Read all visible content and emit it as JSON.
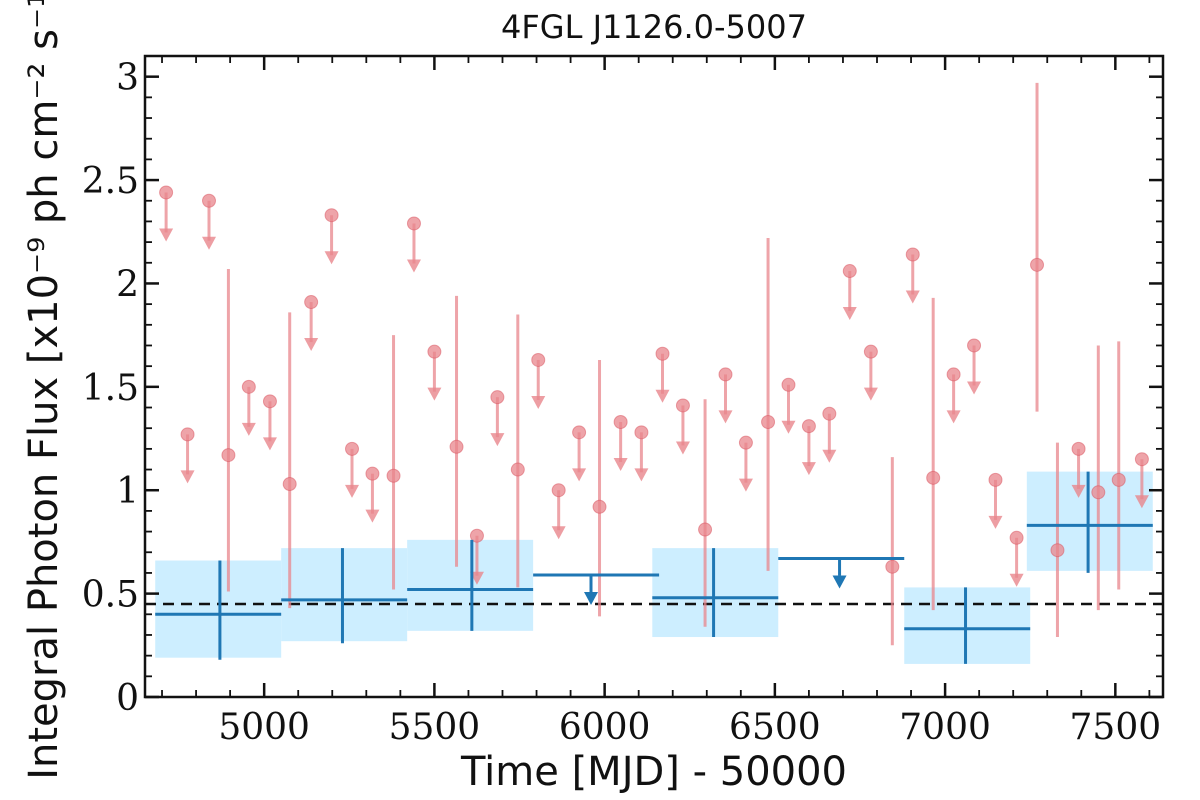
{
  "chart_data": {
    "type": "scatter",
    "title": "4FGL J1126.0-5007",
    "xlabel": "Time [MJD] - 50000",
    "ylabel": "Integral Photon Flux [x10⁻⁹ ph cm⁻² s⁻¹]",
    "xlim": [
      4650,
      7640
    ],
    "ylim": [
      0,
      3.1
    ],
    "x_ticks": [
      5000,
      5500,
      6000,
      6500,
      7000,
      7500
    ],
    "x_tick_labels": [
      "5000",
      "5500",
      "6000",
      "6500",
      "7000",
      "7500"
    ],
    "y_ticks": [
      0,
      0.5,
      1,
      1.5,
      2,
      2.5,
      3
    ],
    "y_tick_labels": [
      "0",
      "0.5",
      "1",
      "1.5",
      "2",
      "2.5",
      "3"
    ],
    "grid": false,
    "colors": {
      "short_bins": "#e8868c",
      "long_bins": "#1f77b4",
      "long_bins_band": "#cdeeff",
      "reference_line": "#111111"
    },
    "reference_line": {
      "y": 0.45,
      "style": "dashed"
    },
    "series": [
      {
        "marker": "circle",
        "detections": [
          {
            "x": 4895,
            "y": 1.17,
            "y_low": 0.51,
            "y_high": 2.07
          },
          {
            "x": 5075,
            "y": 1.03,
            "y_low": 0.43,
            "y_high": 1.86
          },
          {
            "x": 5380,
            "y": 1.07,
            "y_low": 0.52,
            "y_high": 1.75
          },
          {
            "x": 5565,
            "y": 1.21,
            "y_low": 0.63,
            "y_high": 1.94
          },
          {
            "x": 5745,
            "y": 1.1,
            "y_low": 0.53,
            "y_high": 1.85
          },
          {
            "x": 5985,
            "y": 0.92,
            "y_low": 0.39,
            "y_high": 1.63
          },
          {
            "x": 6295,
            "y": 0.81,
            "y_low": 0.34,
            "y_high": 1.44
          },
          {
            "x": 6480,
            "y": 1.33,
            "y_low": 0.61,
            "y_high": 2.22
          },
          {
            "x": 6845,
            "y": 0.63,
            "y_low": 0.25,
            "y_high": 1.16
          },
          {
            "x": 6965,
            "y": 1.06,
            "y_low": 0.42,
            "y_high": 1.93
          },
          {
            "x": 7270,
            "y": 2.09,
            "y_low": 1.38,
            "y_high": 2.97
          },
          {
            "x": 7330,
            "y": 0.71,
            "y_low": 0.29,
            "y_high": 1.23
          },
          {
            "x": 7450,
            "y": 0.99,
            "y_low": 0.42,
            "y_high": 1.7
          },
          {
            "x": 7510,
            "y": 1.05,
            "y_low": 0.52,
            "y_high": 1.72
          }
        ],
        "upper_limits": [
          {
            "x": 4712,
            "y": 2.44
          },
          {
            "x": 4775,
            "y": 1.27
          },
          {
            "x": 4838,
            "y": 2.4
          },
          {
            "x": 4955,
            "y": 1.5
          },
          {
            "x": 5017,
            "y": 1.43
          },
          {
            "x": 5138,
            "y": 1.91
          },
          {
            "x": 5198,
            "y": 2.33
          },
          {
            "x": 5258,
            "y": 1.2
          },
          {
            "x": 5318,
            "y": 1.08
          },
          {
            "x": 5440,
            "y": 2.29
          },
          {
            "x": 5500,
            "y": 1.67
          },
          {
            "x": 5625,
            "y": 0.78
          },
          {
            "x": 5685,
            "y": 1.45
          },
          {
            "x": 5805,
            "y": 1.63
          },
          {
            "x": 5865,
            "y": 1.0
          },
          {
            "x": 5925,
            "y": 1.28
          },
          {
            "x": 6047,
            "y": 1.33
          },
          {
            "x": 6108,
            "y": 1.28
          },
          {
            "x": 6170,
            "y": 1.66
          },
          {
            "x": 6230,
            "y": 1.41
          },
          {
            "x": 6355,
            "y": 1.56
          },
          {
            "x": 6415,
            "y": 1.23
          },
          {
            "x": 6540,
            "y": 1.51
          },
          {
            "x": 6600,
            "y": 1.31
          },
          {
            "x": 6660,
            "y": 1.37
          },
          {
            "x": 6720,
            "y": 2.06
          },
          {
            "x": 6782,
            "y": 1.67
          },
          {
            "x": 6905,
            "y": 2.14
          },
          {
            "x": 7025,
            "y": 1.56
          },
          {
            "x": 7085,
            "y": 1.7
          },
          {
            "x": 7148,
            "y": 1.05
          },
          {
            "x": 7210,
            "y": 0.77
          },
          {
            "x": 7392,
            "y": 1.2
          },
          {
            "x": 7578,
            "y": 1.15
          }
        ]
      },
      {
        "marker": "cross",
        "detections": [
          {
            "x_min": 4680,
            "x_max": 5050,
            "x": 4870,
            "y": 0.4,
            "y_low": 0.18,
            "y_high": 0.66,
            "band_low": 0.19,
            "band_high": 0.66
          },
          {
            "x_min": 5050,
            "x_max": 5420,
            "x": 5230,
            "y": 0.47,
            "y_low": 0.26,
            "y_high": 0.72,
            "band_low": 0.27,
            "band_high": 0.72
          },
          {
            "x_min": 5420,
            "x_max": 5790,
            "x": 5610,
            "y": 0.52,
            "y_low": 0.32,
            "y_high": 0.76,
            "band_low": 0.32,
            "band_high": 0.76
          },
          {
            "x_min": 6140,
            "x_max": 6510,
            "x": 6320,
            "y": 0.48,
            "y_low": 0.29,
            "y_high": 0.72,
            "band_low": 0.29,
            "band_high": 0.72
          },
          {
            "x_min": 6880,
            "x_max": 7250,
            "x": 7060,
            "y": 0.33,
            "y_low": 0.16,
            "y_high": 0.53,
            "band_low": 0.16,
            "band_high": 0.53
          },
          {
            "x_min": 7240,
            "x_max": 7610,
            "x": 7420,
            "y": 0.83,
            "y_low": 0.6,
            "y_high": 1.09,
            "band_low": 0.61,
            "band_high": 1.09
          }
        ],
        "upper_limits": [
          {
            "x_min": 5790,
            "x_max": 6160,
            "x": 5960,
            "y": 0.59
          },
          {
            "x_min": 6510,
            "x_max": 6880,
            "x": 6690,
            "y": 0.67
          }
        ]
      }
    ]
  }
}
